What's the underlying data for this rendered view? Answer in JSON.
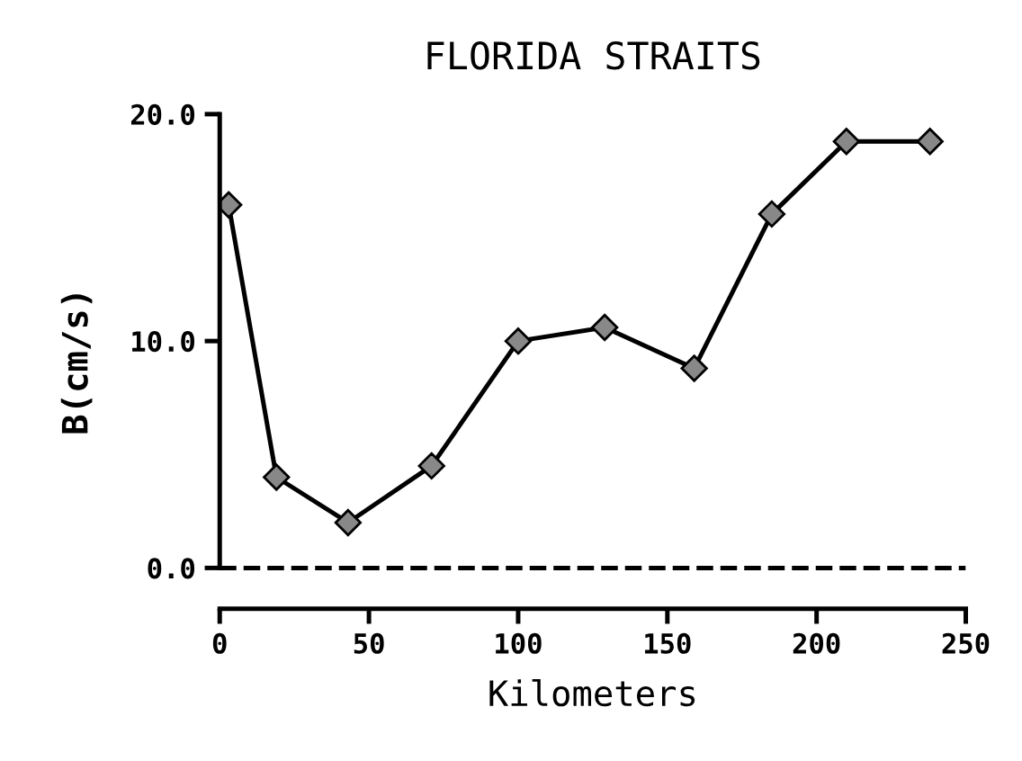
{
  "chart_data": {
    "type": "line",
    "title": "FLORIDA STRAITS",
    "xlabel": "Kilometers",
    "ylabel": "B(cm/s)",
    "x": [
      3,
      19,
      43,
      71,
      100,
      129,
      159,
      185,
      210,
      238
    ],
    "series": [
      {
        "color": "#000000",
        "values": [
          16.0,
          4.0,
          2.0,
          4.5,
          10.0,
          10.6,
          8.8,
          15.6,
          18.8,
          18.8
        ]
      }
    ],
    "xlim": [
      0,
      250
    ],
    "xticks": [
      0,
      50,
      100,
      150,
      200,
      250
    ],
    "ylim": [
      -1.8,
      20
    ],
    "yticks": [
      {
        "value": 0,
        "label": "0.0"
      },
      {
        "value": 10,
        "label": "10.0"
      },
      {
        "value": 20,
        "label": "20.0"
      }
    ],
    "ref_lines": [
      {
        "axis": "y",
        "value": 0,
        "line_style": "dashed",
        "color": "#000000"
      }
    ],
    "marker": "diamond",
    "line_style": "solid",
    "grid": false,
    "legend": false
  }
}
